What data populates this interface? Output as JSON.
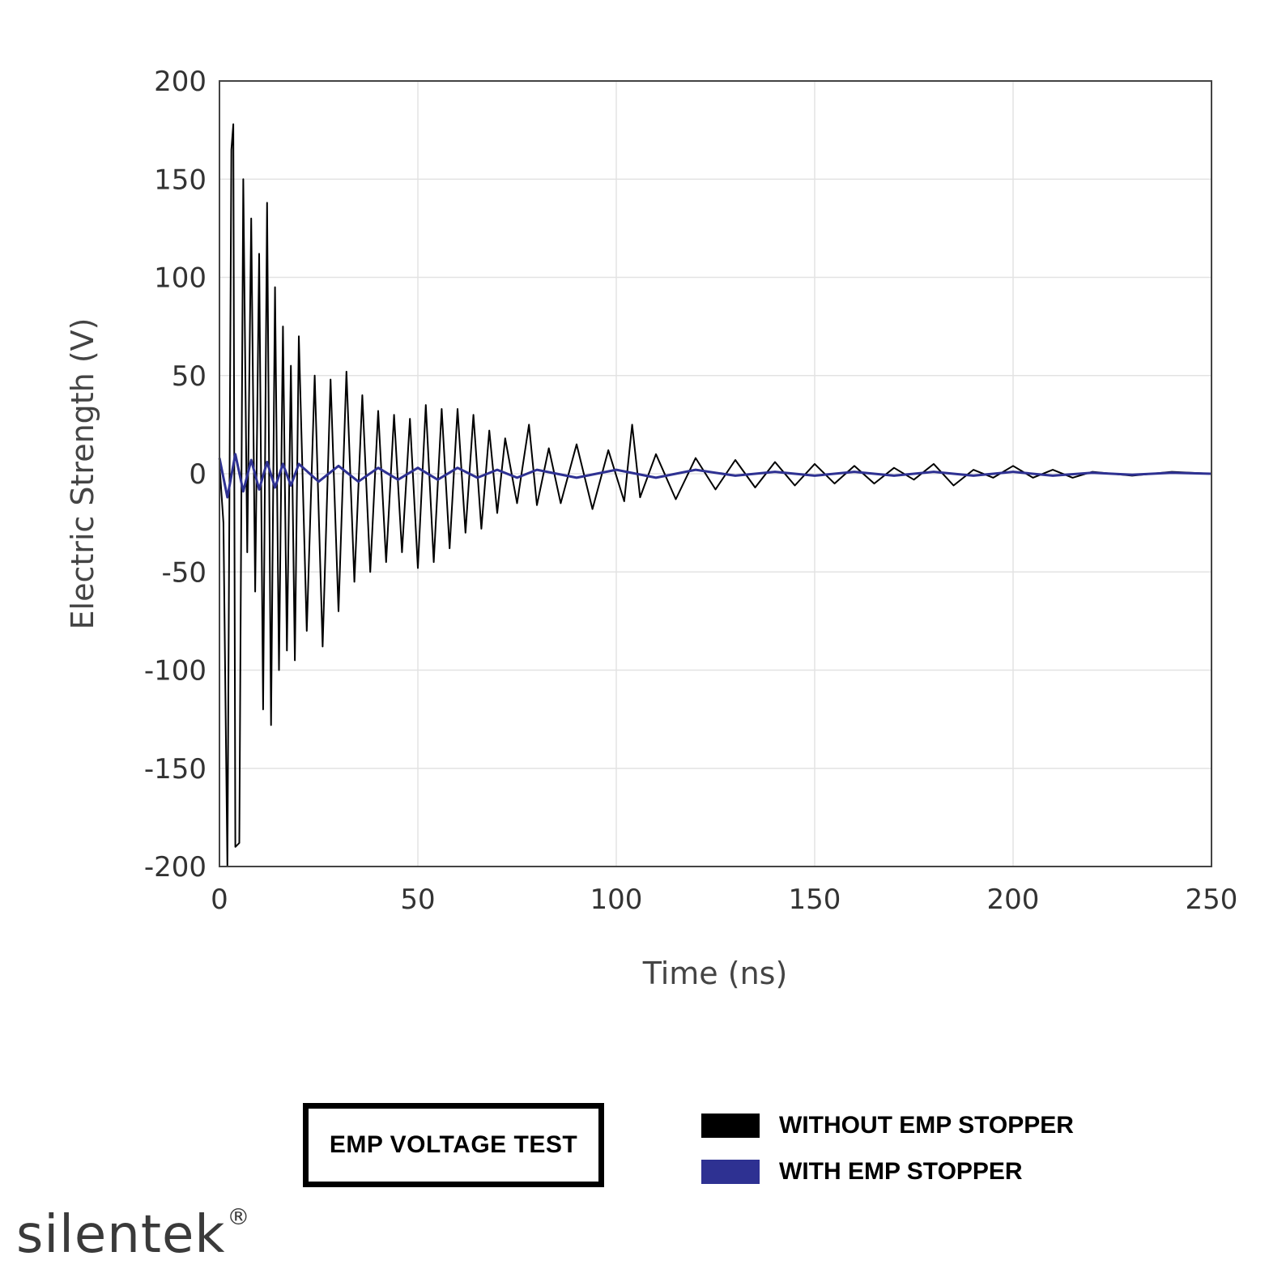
{
  "chart_data": {
    "type": "line",
    "title": "EMP VOLTAGE TEST",
    "xlabel": "Time (ns)",
    "ylabel": "Electric Strength (V)",
    "xlim": [
      0,
      250
    ],
    "ylim": [
      -200,
      200
    ],
    "x_ticks": [
      "0",
      "50",
      "100",
      "150",
      "200",
      "250"
    ],
    "y_ticks": [
      "200",
      "150",
      "100",
      "50",
      "0",
      "-50",
      "-100",
      "-150",
      "-200"
    ],
    "grid": true,
    "legend_position": "bottom",
    "series": [
      {
        "name": "WITHOUT EMP STOPPER",
        "color": "#000000",
        "x": [
          0,
          1,
          2,
          3,
          3.5,
          4,
          5,
          6,
          7,
          8,
          9,
          10,
          11,
          12,
          13,
          14,
          15,
          16,
          17,
          18,
          19,
          20,
          22,
          24,
          26,
          28,
          30,
          32,
          34,
          36,
          38,
          40,
          42,
          44,
          46,
          48,
          50,
          52,
          54,
          56,
          58,
          60,
          62,
          64,
          66,
          68,
          70,
          72,
          75,
          78,
          80,
          83,
          86,
          90,
          94,
          98,
          102,
          104,
          106,
          110,
          115,
          120,
          125,
          130,
          135,
          140,
          145,
          150,
          155,
          160,
          165,
          170,
          175,
          180,
          185,
          190,
          195,
          200,
          205,
          210,
          215,
          220,
          230,
          240,
          250
        ],
        "values": [
          5,
          -25,
          -200,
          165,
          178,
          -190,
          -188,
          150,
          -40,
          130,
          -60,
          112,
          -120,
          138,
          -128,
          95,
          -100,
          75,
          -90,
          55,
          -95,
          70,
          -80,
          50,
          -88,
          48,
          -70,
          52,
          -55,
          40,
          -50,
          32,
          -45,
          30,
          -40,
          28,
          -48,
          35,
          -45,
          33,
          -38,
          33,
          -30,
          30,
          -28,
          22,
          -20,
          18,
          -15,
          25,
          -16,
          13,
          -15,
          15,
          -18,
          12,
          -14,
          25,
          -12,
          10,
          -13,
          8,
          -8,
          7,
          -7,
          6,
          -6,
          5,
          -5,
          4,
          -5,
          3,
          -3,
          5,
          -6,
          2,
          -2,
          4,
          -2,
          2,
          -2,
          1,
          -1,
          1,
          0
        ]
      },
      {
        "name": "WITH EMP STOPPER",
        "color": "#2e3192",
        "x": [
          0,
          2,
          4,
          6,
          8,
          10,
          12,
          14,
          16,
          18,
          20,
          25,
          30,
          35,
          40,
          45,
          50,
          55,
          60,
          65,
          70,
          75,
          80,
          90,
          100,
          110,
          120,
          130,
          140,
          150,
          160,
          170,
          180,
          190,
          200,
          210,
          220,
          230,
          240,
          250
        ],
        "values": [
          8,
          -12,
          10,
          -9,
          7,
          -8,
          6,
          -7,
          5,
          -6,
          5,
          -4,
          4,
          -4,
          3,
          -3,
          3,
          -3,
          3,
          -2,
          2,
          -2,
          2,
          -2,
          2,
          -2,
          2,
          -1,
          1,
          -1,
          1,
          -1,
          1,
          -1,
          1,
          -1,
          0.5,
          -0.5,
          0.5,
          0
        ]
      }
    ]
  },
  "logo": {
    "text": "silentek",
    "mark": "®"
  }
}
